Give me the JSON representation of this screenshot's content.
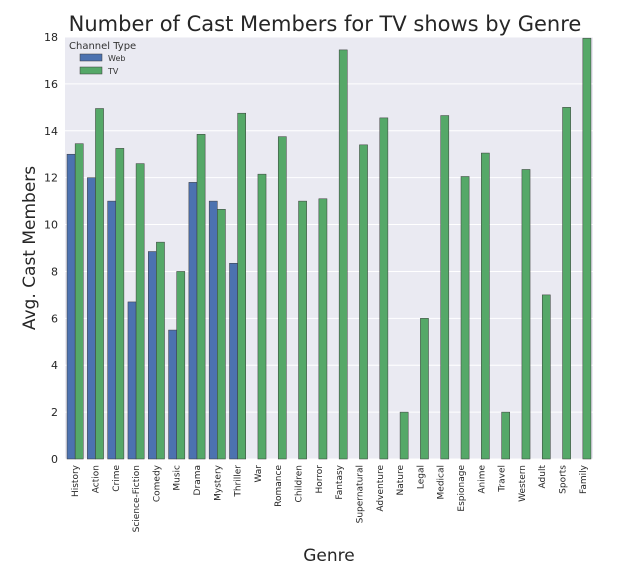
{
  "chart_data": {
    "type": "bar",
    "title": "Number of Cast Members for TV shows by Genre",
    "xlabel": "Genre",
    "ylabel": "Avg. Cast Members",
    "ylim": [
      0,
      18
    ],
    "yticks": [
      0,
      2,
      4,
      6,
      8,
      10,
      12,
      14,
      16,
      18
    ],
    "grid": true,
    "legend": {
      "title": "Channel Type",
      "placement": "top-left"
    },
    "categories": [
      "History",
      "Action",
      "Crime",
      "Science-Fiction",
      "Comedy",
      "Music",
      "Drama",
      "Mystery",
      "Thriller",
      "War",
      "Romance",
      "Children",
      "Horror",
      "Fantasy",
      "Supernatural",
      "Adventure",
      "Nature",
      "Legal",
      "Medical",
      "Espionage",
      "Anime",
      "Travel",
      "Western",
      "Adult",
      "Sports",
      "Family"
    ],
    "series": [
      {
        "name": "Web",
        "color": "#4c72b0",
        "values": [
          13.0,
          12.0,
          11.0,
          6.7,
          8.85,
          5.5,
          11.8,
          11.0,
          8.35,
          null,
          null,
          null,
          null,
          null,
          null,
          null,
          null,
          null,
          null,
          null,
          null,
          null,
          null,
          null,
          null,
          null
        ]
      },
      {
        "name": "TV",
        "color": "#55a868",
        "values": [
          13.45,
          14.95,
          13.25,
          12.6,
          9.25,
          8.0,
          13.85,
          10.65,
          14.75,
          12.15,
          13.75,
          11.0,
          11.1,
          17.45,
          13.4,
          14.55,
          2.0,
          6.0,
          14.65,
          12.05,
          13.05,
          2.0,
          12.35,
          7.0,
          15.0,
          17.95
        ]
      }
    ]
  }
}
